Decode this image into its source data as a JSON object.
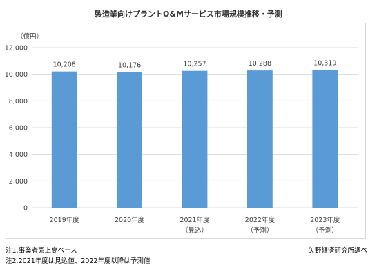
{
  "title": "製造業向けプラントO&Mサービス市場規模推移・予測",
  "unit_label": "（億円）",
  "notes": [
    "注1.事業者売上高ベース",
    "注2.2021年度は見込値、2022年度以降は予測値"
  ],
  "source": "矢野経済研究所調べ",
  "colors": {
    "bar": "#5b9bd5",
    "grid": "#d9d9d9",
    "axis_text": "#404040"
  },
  "chart_data": {
    "type": "bar",
    "title": "製造業向けプラントO&Mサービス市場規模推移・予測",
    "ylabel": "（億円）",
    "xlabel": "",
    "categories": [
      [
        "2019年度"
      ],
      [
        "2020年度"
      ],
      [
        "2021年度",
        "（見込）"
      ],
      [
        "2022年度",
        "（予測）"
      ],
      [
        "2023年度",
        "（予測）"
      ]
    ],
    "values": [
      10208,
      10176,
      10257,
      10288,
      10319
    ],
    "value_labels": [
      "10,208",
      "10,176",
      "10,257",
      "10,288",
      "10,319"
    ],
    "ylim": [
      0,
      12000
    ],
    "yticks": [
      0,
      2000,
      4000,
      6000,
      8000,
      10000,
      12000
    ],
    "ytick_labels": [
      "0",
      "2,000",
      "4,000",
      "6,000",
      "8,000",
      "10,000",
      "12,000"
    ],
    "grid": true,
    "legend": "none"
  }
}
